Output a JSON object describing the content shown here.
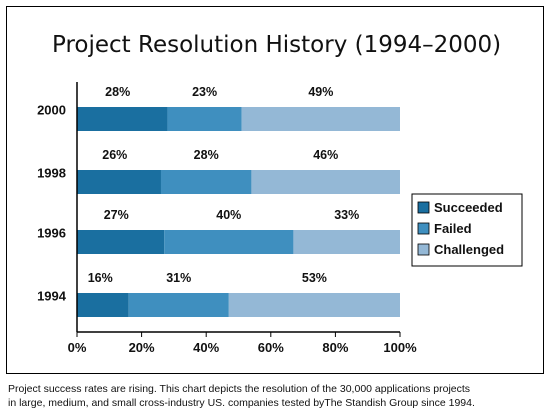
{
  "chart_data": {
    "type": "bar",
    "orientation": "horizontal",
    "stacked": true,
    "title": "Project Resolution History (1994–2000)",
    "categories": [
      "2000",
      "1998",
      "1996",
      "1994"
    ],
    "series": [
      {
        "name": "Succeeded",
        "values": [
          28,
          26,
          27,
          16
        ],
        "labels": [
          "28%",
          "26%",
          "27%",
          "16%"
        ],
        "color": "#1a6fa0"
      },
      {
        "name": "Failed",
        "values": [
          23,
          28,
          40,
          31
        ],
        "labels": [
          "23%",
          "28%",
          "40%",
          "31%"
        ],
        "color": "#3f8fbf"
      },
      {
        "name": "Challenged",
        "values": [
          49,
          46,
          33,
          53
        ],
        "labels": [
          "49%",
          "46%",
          "33%",
          "53%"
        ],
        "color": "#94b8d6"
      }
    ],
    "xlim": [
      0,
      100
    ],
    "xticks": [
      "0%",
      "20%",
      "40%",
      "60%",
      "80%",
      "100%"
    ],
    "legend_position": "right",
    "grid": false
  },
  "caption": {
    "line1": "Project success rates are rising. This chart depicts the resolution of the 30,000 applications projects",
    "line2": "in large, medium, and small cross-industry US. companies tested byThe Standish Group since 1994."
  }
}
